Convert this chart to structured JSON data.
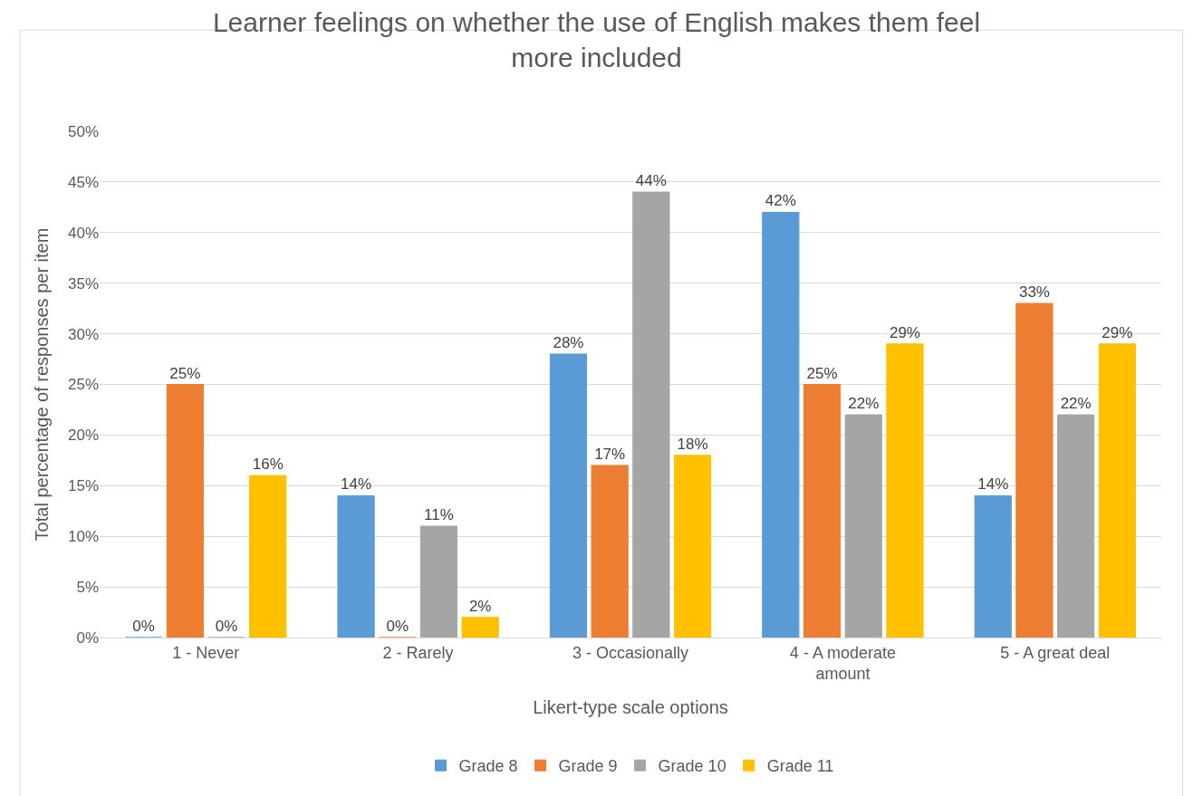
{
  "chart_data": {
    "type": "bar",
    "title": "Learner feelings on whether the use of English makes them feel more included",
    "xlabel": "Likert-type scale options",
    "ylabel": "Total percentage of responses per item",
    "categories": [
      "1 - Never",
      "2 - Rarely",
      "3 - Occasionally",
      "4 - A moderate amount",
      "5 - A great deal"
    ],
    "series": [
      {
        "name": "Grade 8",
        "color": "#5b9bd5",
        "values": [
          0,
          14,
          28,
          42,
          14
        ],
        "value_labels": [
          "0%",
          "14%",
          "28%",
          "42%",
          "14%"
        ]
      },
      {
        "name": "Grade 9",
        "color": "#ed7d31",
        "values": [
          25,
          0,
          17,
          25,
          33
        ],
        "value_labels": [
          "25%",
          "0%",
          "17%",
          "25%",
          "33%"
        ]
      },
      {
        "name": "Grade 10",
        "color": "#a5a5a5",
        "values": [
          0,
          11,
          44,
          22,
          22
        ],
        "value_labels": [
          "0%",
          "11%",
          "44%",
          "22%",
          "22%"
        ]
      },
      {
        "name": "Grade 11",
        "color": "#ffc000",
        "values": [
          16,
          2,
          18,
          29,
          29
        ],
        "value_labels": [
          "16%",
          "2%",
          "18%",
          "29%",
          "29%"
        ]
      }
    ],
    "ylim": [
      0,
      50
    ],
    "yticks": [
      {
        "value": 0,
        "label": "0%"
      },
      {
        "value": 5,
        "label": "5%"
      },
      {
        "value": 10,
        "label": "10%"
      },
      {
        "value": 15,
        "label": "15%"
      },
      {
        "value": 20,
        "label": "20%"
      },
      {
        "value": 25,
        "label": "25%"
      },
      {
        "value": 30,
        "label": "30%"
      },
      {
        "value": 35,
        "label": "35%"
      },
      {
        "value": 40,
        "label": "40%"
      },
      {
        "value": 45,
        "label": "45%"
      },
      {
        "value": 50,
        "label": "50%"
      }
    ],
    "grid": "y",
    "legend": "bottom"
  }
}
